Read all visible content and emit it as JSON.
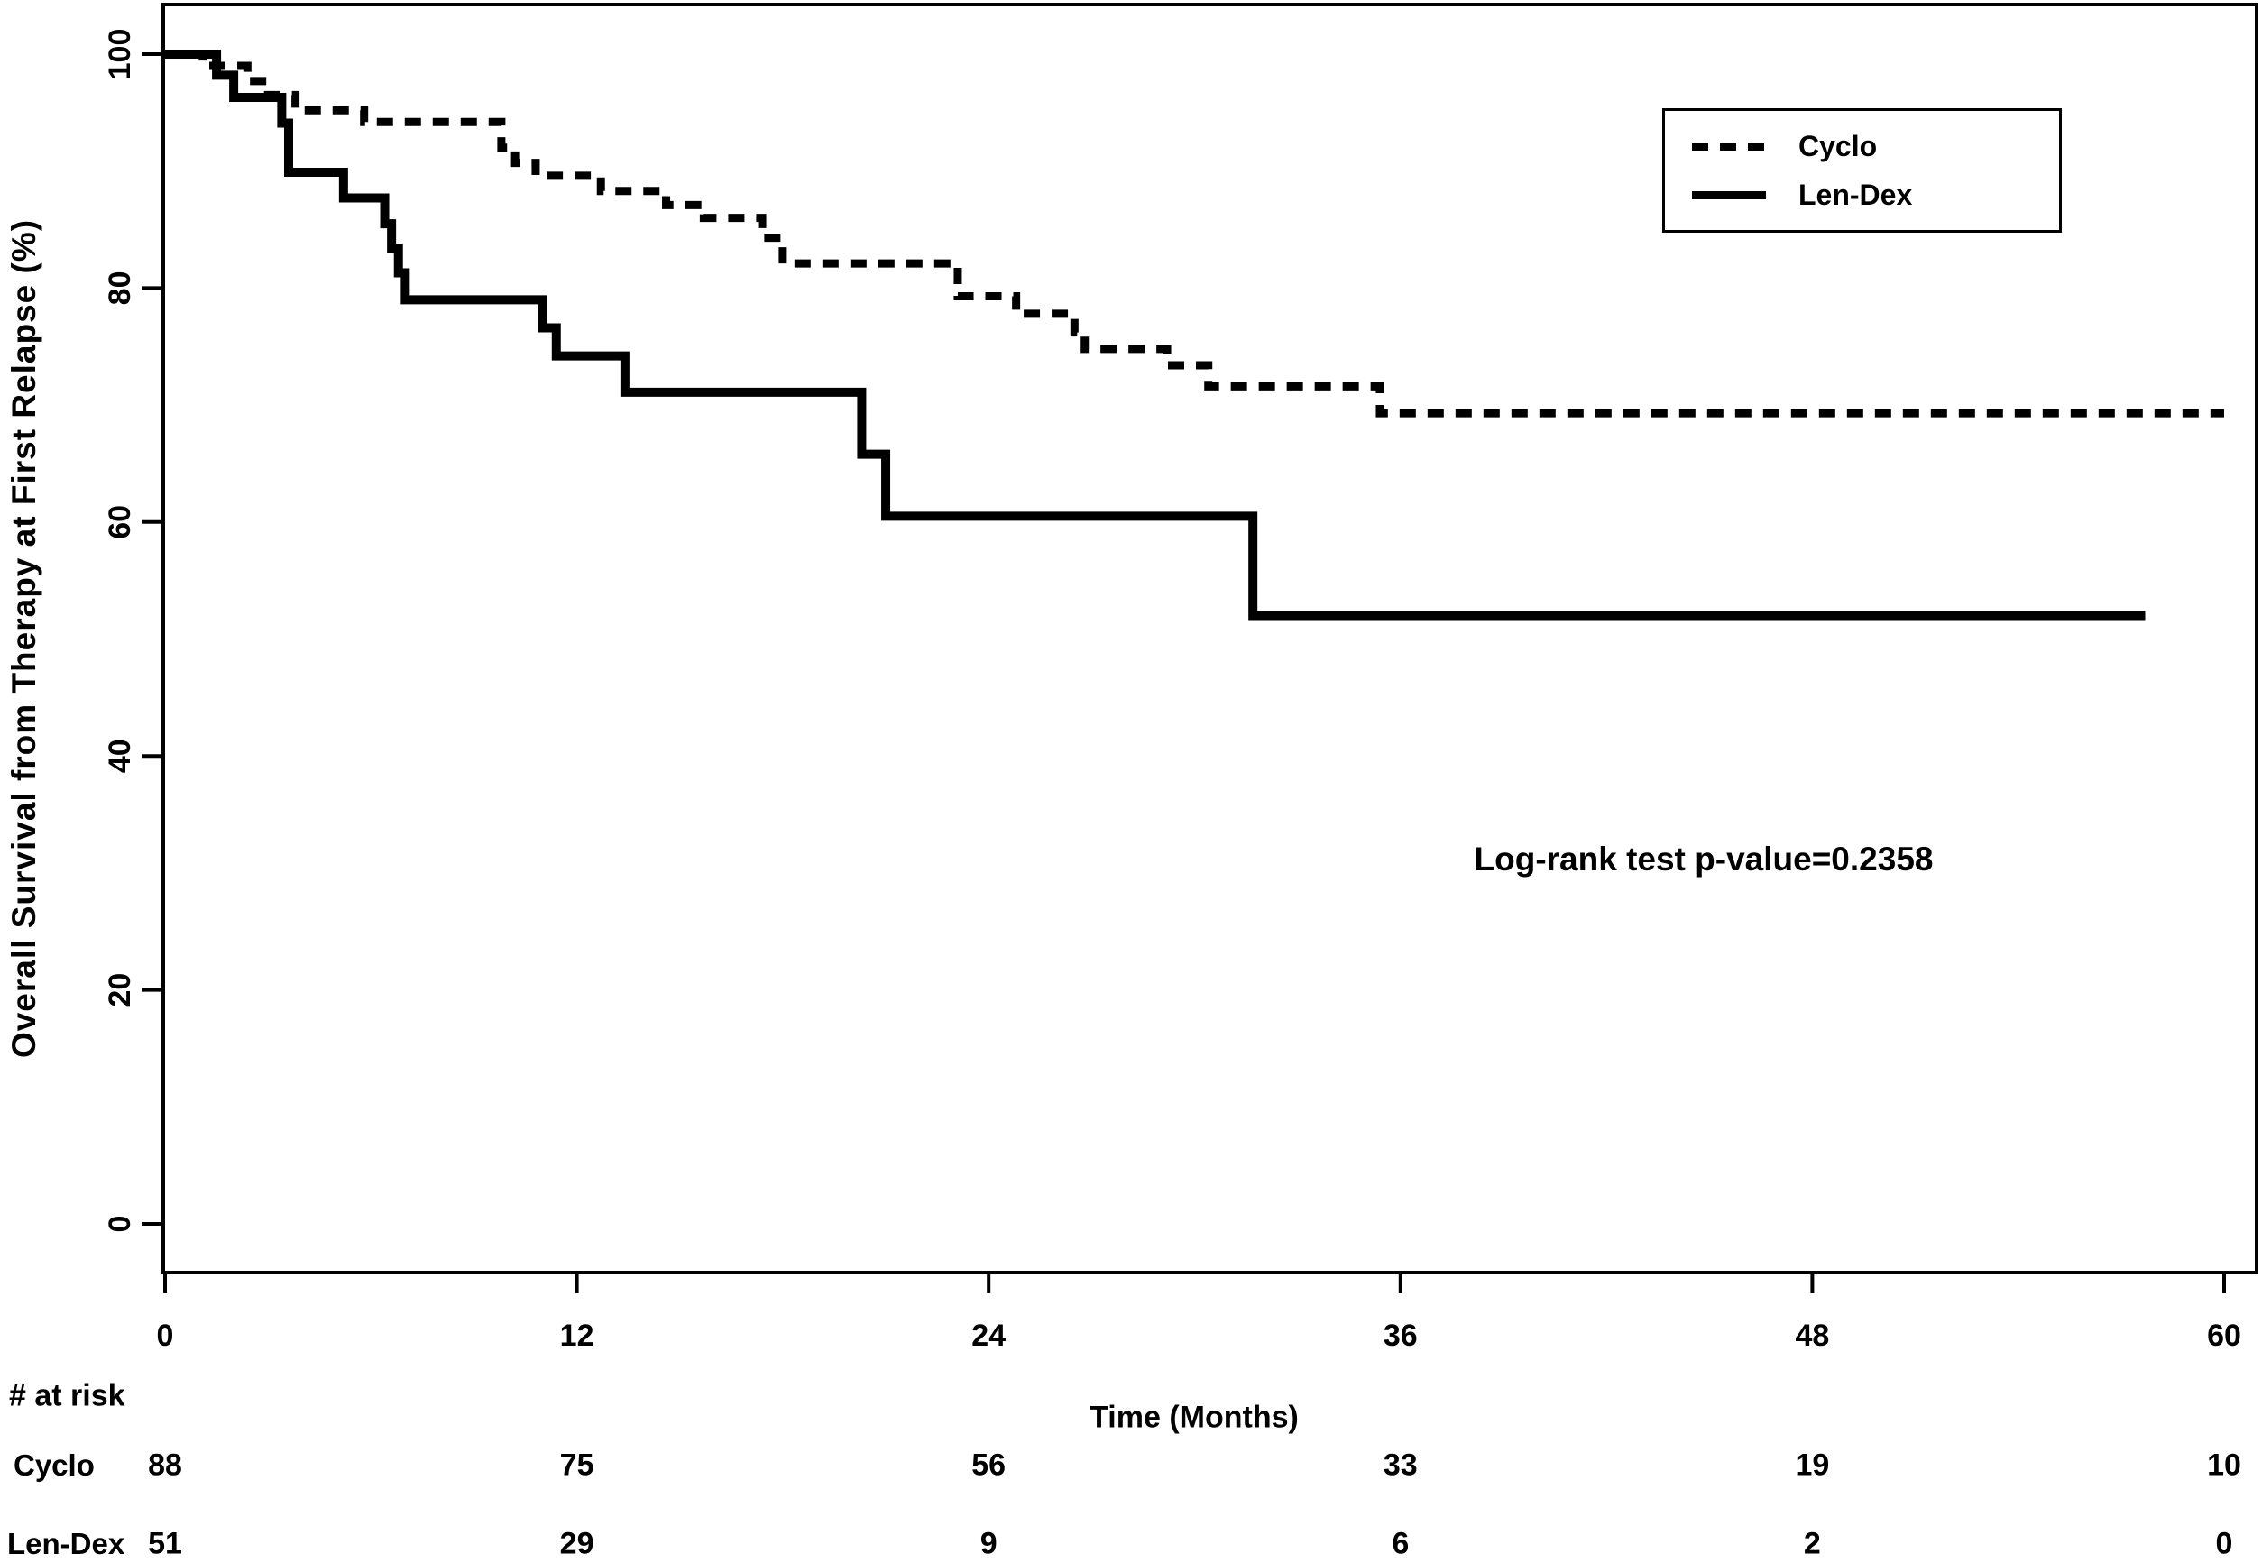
{
  "figure": {
    "background": "#ffffff",
    "ink_color": "#000000"
  },
  "axes": {
    "x_title": "Time (Months)",
    "y_title": "Overall Survival from Therapy at First Relapse (%)"
  },
  "annotation": {
    "text": "Log-rank test p-value=0.2358"
  },
  "legend": {
    "items": [
      {
        "label": "Cyclo",
        "style": "dashed"
      },
      {
        "label": "Len-Dex",
        "style": "solid"
      }
    ]
  },
  "risk_table": {
    "header": "# at risk",
    "time_points": [
      0,
      12,
      24,
      36,
      48,
      60
    ],
    "rows": [
      {
        "label": "Cyclo",
        "counts": [
          "88",
          "75",
          "56",
          "33",
          "19",
          "10"
        ]
      },
      {
        "label": "Len-Dex",
        "counts": [
          "51",
          "29",
          "9",
          "6",
          "2",
          "0"
        ]
      }
    ]
  },
  "chart_data": {
    "type": "line",
    "subtype": "kaplan_meier_step",
    "title": "",
    "xlabel": "Time (Months)",
    "ylabel": "Overall Survival from Therapy at First Relapse (%)",
    "xlim": [
      0,
      60
    ],
    "ylim": [
      0,
      100
    ],
    "x_ticks": [
      0,
      12,
      24,
      36,
      48,
      60
    ],
    "y_ticks": [
      0,
      20,
      40,
      60,
      80,
      100
    ],
    "grid": false,
    "legend_position": "top-right",
    "annotation": "Log-rank test p-value=0.2358",
    "series": [
      {
        "name": "Cyclo",
        "line_style": "dashed",
        "color": "#000000",
        "end_x": 60.0,
        "steps": [
          [
            0,
            100
          ],
          [
            1.1,
            99.0
          ],
          [
            2.4,
            97.7
          ],
          [
            3.0,
            96.5
          ],
          [
            3.8,
            95.2
          ],
          [
            5.8,
            94.2
          ],
          [
            9.8,
            92.0
          ],
          [
            10.2,
            90.7
          ],
          [
            10.8,
            89.6
          ],
          [
            12.7,
            88.3
          ],
          [
            14.6,
            87.1
          ],
          [
            15.7,
            86.0
          ],
          [
            17.4,
            84.3
          ],
          [
            18.0,
            82.1
          ],
          [
            23.1,
            79.3
          ],
          [
            24.8,
            77.8
          ],
          [
            26.5,
            76.2
          ],
          [
            26.8,
            74.8
          ],
          [
            29.2,
            73.4
          ],
          [
            30.4,
            71.6
          ],
          [
            35.4,
            69.3
          ]
        ]
      },
      {
        "name": "Len-Dex",
        "line_style": "solid",
        "color": "#000000",
        "end_x": 57.7,
        "steps": [
          [
            0,
            100
          ],
          [
            1.5,
            98.2
          ],
          [
            2.0,
            96.3
          ],
          [
            3.4,
            94.1
          ],
          [
            3.6,
            89.9
          ],
          [
            5.2,
            87.7
          ],
          [
            6.4,
            85.5
          ],
          [
            6.6,
            83.4
          ],
          [
            6.8,
            81.3
          ],
          [
            7.0,
            79.0
          ],
          [
            11.0,
            76.6
          ],
          [
            11.4,
            74.2
          ],
          [
            13.4,
            71.1
          ],
          [
            20.3,
            65.8
          ],
          [
            21.0,
            60.5
          ],
          [
            31.7,
            52.0
          ]
        ]
      }
    ]
  }
}
